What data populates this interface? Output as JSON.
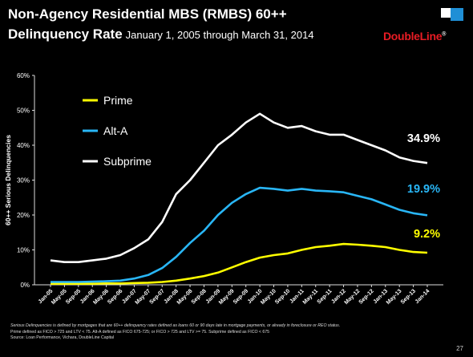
{
  "header": {
    "title_line1": "Non-Agency Residential MBS (RMBS) 60++",
    "title_line2": "Delinquency Rate",
    "subtitle": "January 1, 2005 through March 31, 2014",
    "logo_text": "DoubleLine",
    "logo_mark": "®"
  },
  "colors": {
    "prime": "#ffff00",
    "alt_a": "#29b6f6",
    "subprime": "#ffffff",
    "brand_red": "#e81c24",
    "brand_blue": "#1f8fd6"
  },
  "footnote": {
    "line1": "Serious Delinquencies is defined by mortgages that are 60++ delinquency rates defined as loans 60 or 90 days late in mortgage payments, or already in foreclosure or REO status.",
    "line2": "Prime defined as FICO > 725 and LTV < 75.  Alt-A defined as FICO 675-725; or FICO > 725 and LTV >= 75.  Subprime defined as FICO < 675",
    "line3": "Source: Loan Performance, Vichara, DoubleLine Capital"
  },
  "page_number": "27",
  "chart_data": {
    "type": "line",
    "ylabel": "60++ Serious Delinquencies",
    "xlabel": "",
    "ylim": [
      0,
      60
    ],
    "yticks": [
      "0%",
      "10%",
      "20%",
      "30%",
      "40%",
      "50%",
      "60%"
    ],
    "grid": false,
    "legend_position": "top-left",
    "x": [
      "Jan-05",
      "May-05",
      "Sep-05",
      "Jan-06",
      "May-06",
      "Sep-06",
      "Jan-07",
      "May-07",
      "Sep-07",
      "Jan-08",
      "May-08",
      "Sep-08",
      "Jan-09",
      "May-09",
      "Sep-09",
      "Jan-10",
      "May-10",
      "Sep-10",
      "Jan-11",
      "May-11",
      "Sep-11",
      "Jan-12",
      "May-12",
      "Sep-12",
      "Jan-13",
      "May-13",
      "Sep-13",
      "Jan-14"
    ],
    "series": [
      {
        "name": "Prime",
        "color": "#ffff00",
        "end_label": "9.2%",
        "values": [
          0.3,
          0.3,
          0.3,
          0.3,
          0.4,
          0.4,
          0.5,
          0.6,
          0.8,
          1.2,
          1.8,
          2.5,
          3.5,
          5.0,
          6.5,
          7.8,
          8.5,
          9.0,
          10.0,
          10.8,
          11.2,
          11.7,
          11.5,
          11.2,
          10.8,
          10.0,
          9.4,
          9.2
        ]
      },
      {
        "name": "Alt-A",
        "color": "#29b6f6",
        "end_label": "19.9%",
        "values": [
          0.8,
          0.8,
          0.8,
          0.9,
          1.0,
          1.2,
          1.8,
          2.8,
          4.8,
          8.0,
          12.0,
          15.5,
          20.0,
          23.5,
          26.0,
          27.8,
          27.5,
          27.0,
          27.5,
          27.0,
          26.8,
          26.5,
          25.5,
          24.5,
          23.0,
          21.5,
          20.5,
          19.9
        ]
      },
      {
        "name": "Subprime",
        "color": "#ffffff",
        "end_label": "34.9%",
        "values": [
          7.0,
          6.5,
          6.5,
          7.0,
          7.5,
          8.5,
          10.5,
          13.0,
          18.0,
          26.0,
          30.0,
          35.0,
          40.0,
          43.0,
          46.5,
          49.0,
          46.5,
          45.0,
          45.5,
          44.0,
          43.0,
          43.0,
          41.5,
          40.0,
          38.5,
          36.5,
          35.5,
          34.9
        ]
      }
    ]
  }
}
